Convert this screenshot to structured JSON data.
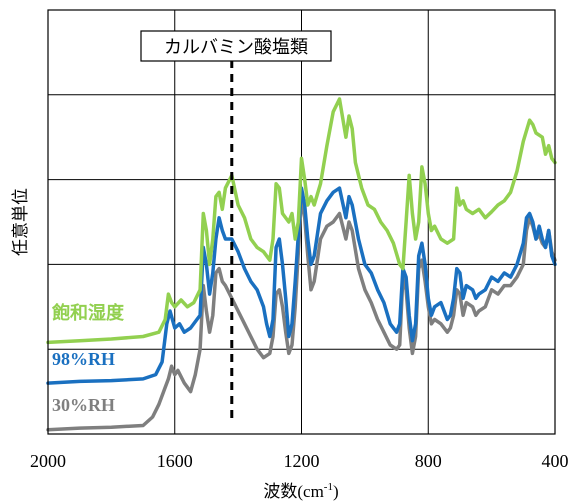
{
  "chart_data": {
    "type": "line",
    "xlabel": "波数(cm",
    "xlabel_sup": "-1",
    "xlabel_close": ")",
    "ylabel": "任意単位",
    "xlim": [
      2000,
      400
    ],
    "x_reversed": true,
    "ylim": [
      0,
      5
    ],
    "grid": true,
    "x_ticks": [
      "2000",
      "1600",
      "1200",
      "800",
      "400"
    ],
    "x_tick_values": [
      2000,
      1600,
      1200,
      800,
      400
    ],
    "annotation": {
      "label": "カルバミン酸塩類",
      "x": 1420,
      "style": "dashed vertical line"
    },
    "series": [
      {
        "name": "飽和湿度",
        "color": "#92d050",
        "points": [
          [
            2000,
            1.08
          ],
          [
            1900,
            1.1
          ],
          [
            1800,
            1.12
          ],
          [
            1700,
            1.15
          ],
          [
            1650,
            1.2
          ],
          [
            1630,
            1.35
          ],
          [
            1620,
            1.65
          ],
          [
            1610,
            1.55
          ],
          [
            1600,
            1.5
          ],
          [
            1580,
            1.58
          ],
          [
            1560,
            1.5
          ],
          [
            1540,
            1.55
          ],
          [
            1520,
            1.7
          ],
          [
            1510,
            2.6
          ],
          [
            1500,
            2.4
          ],
          [
            1490,
            2.0
          ],
          [
            1480,
            2.3
          ],
          [
            1470,
            2.8
          ],
          [
            1460,
            2.85
          ],
          [
            1450,
            2.65
          ],
          [
            1440,
            2.9
          ],
          [
            1420,
            3.05
          ],
          [
            1400,
            2.7
          ],
          [
            1380,
            2.55
          ],
          [
            1360,
            2.3
          ],
          [
            1340,
            2.2
          ],
          [
            1320,
            2.15
          ],
          [
            1300,
            2.05
          ],
          [
            1290,
            2.3
          ],
          [
            1280,
            2.95
          ],
          [
            1270,
            2.9
          ],
          [
            1260,
            2.6
          ],
          [
            1240,
            2.5
          ],
          [
            1230,
            2.6
          ],
          [
            1220,
            2.3
          ],
          [
            1210,
            2.5
          ],
          [
            1200,
            3.25
          ],
          [
            1190,
            3.0
          ],
          [
            1180,
            2.7
          ],
          [
            1170,
            2.8
          ],
          [
            1160,
            2.7
          ],
          [
            1140,
            2.95
          ],
          [
            1120,
            3.4
          ],
          [
            1100,
            3.8
          ],
          [
            1080,
            3.95
          ],
          [
            1060,
            3.5
          ],
          [
            1050,
            3.75
          ],
          [
            1040,
            3.6
          ],
          [
            1030,
            3.2
          ],
          [
            1010,
            2.9
          ],
          [
            990,
            2.7
          ],
          [
            970,
            2.65
          ],
          [
            950,
            2.5
          ],
          [
            930,
            2.4
          ],
          [
            910,
            2.25
          ],
          [
            890,
            2.0
          ],
          [
            880,
            1.95
          ],
          [
            870,
            2.5
          ],
          [
            860,
            3.05
          ],
          [
            850,
            2.6
          ],
          [
            840,
            2.3
          ],
          [
            830,
            2.5
          ],
          [
            820,
            3.15
          ],
          [
            810,
            2.95
          ],
          [
            800,
            2.6
          ],
          [
            790,
            2.4
          ],
          [
            780,
            2.45
          ],
          [
            760,
            2.3
          ],
          [
            740,
            2.25
          ],
          [
            720,
            2.3
          ],
          [
            710,
            2.9
          ],
          [
            700,
            2.7
          ],
          [
            690,
            2.75
          ],
          [
            680,
            2.65
          ],
          [
            660,
            2.6
          ],
          [
            640,
            2.65
          ],
          [
            620,
            2.55
          ],
          [
            600,
            2.62
          ],
          [
            580,
            2.7
          ],
          [
            560,
            2.75
          ],
          [
            540,
            2.85
          ],
          [
            520,
            3.1
          ],
          [
            500,
            3.45
          ],
          [
            480,
            3.7
          ],
          [
            470,
            3.65
          ],
          [
            460,
            3.55
          ],
          [
            440,
            3.5
          ],
          [
            430,
            3.3
          ],
          [
            420,
            3.4
          ],
          [
            410,
            3.25
          ],
          [
            400,
            3.2
          ]
        ]
      },
      {
        "name": "98%RH",
        "color": "#1a70c0",
        "points": [
          [
            2000,
            0.6
          ],
          [
            1900,
            0.62
          ],
          [
            1800,
            0.63
          ],
          [
            1700,
            0.65
          ],
          [
            1660,
            0.7
          ],
          [
            1640,
            0.85
          ],
          [
            1625,
            1.3
          ],
          [
            1615,
            1.45
          ],
          [
            1600,
            1.25
          ],
          [
            1585,
            1.3
          ],
          [
            1570,
            1.2
          ],
          [
            1550,
            1.25
          ],
          [
            1530,
            1.35
          ],
          [
            1520,
            1.4
          ],
          [
            1510,
            2.2
          ],
          [
            1500,
            2.0
          ],
          [
            1490,
            1.65
          ],
          [
            1480,
            1.9
          ],
          [
            1470,
            2.3
          ],
          [
            1460,
            2.55
          ],
          [
            1450,
            2.4
          ],
          [
            1440,
            2.3
          ],
          [
            1420,
            2.3
          ],
          [
            1400,
            2.15
          ],
          [
            1380,
            1.95
          ],
          [
            1360,
            1.8
          ],
          [
            1340,
            1.7
          ],
          [
            1320,
            1.5
          ],
          [
            1310,
            1.3
          ],
          [
            1300,
            1.15
          ],
          [
            1290,
            1.35
          ],
          [
            1280,
            2.2
          ],
          [
            1270,
            2.3
          ],
          [
            1260,
            2.0
          ],
          [
            1250,
            1.6
          ],
          [
            1240,
            1.15
          ],
          [
            1230,
            1.3
          ],
          [
            1220,
            1.8
          ],
          [
            1200,
            2.9
          ],
          [
            1190,
            2.7
          ],
          [
            1180,
            2.3
          ],
          [
            1170,
            2.0
          ],
          [
            1160,
            2.1
          ],
          [
            1140,
            2.6
          ],
          [
            1120,
            2.75
          ],
          [
            1100,
            2.85
          ],
          [
            1080,
            2.9
          ],
          [
            1060,
            2.55
          ],
          [
            1050,
            2.8
          ],
          [
            1040,
            2.7
          ],
          [
            1020,
            2.3
          ],
          [
            1000,
            2.0
          ],
          [
            980,
            1.9
          ],
          [
            960,
            1.7
          ],
          [
            940,
            1.55
          ],
          [
            920,
            1.3
          ],
          [
            900,
            1.2
          ],
          [
            890,
            1.3
          ],
          [
            880,
            1.95
          ],
          [
            870,
            1.85
          ],
          [
            860,
            1.4
          ],
          [
            850,
            1.1
          ],
          [
            840,
            1.3
          ],
          [
            830,
            2.1
          ],
          [
            820,
            2.25
          ],
          [
            810,
            2.0
          ],
          [
            800,
            1.6
          ],
          [
            790,
            1.4
          ],
          [
            780,
            1.5
          ],
          [
            760,
            1.55
          ],
          [
            740,
            1.35
          ],
          [
            730,
            1.4
          ],
          [
            720,
            1.6
          ],
          [
            710,
            1.95
          ],
          [
            700,
            1.9
          ],
          [
            690,
            1.6
          ],
          [
            680,
            1.75
          ],
          [
            660,
            1.7
          ],
          [
            650,
            1.6
          ],
          [
            640,
            1.65
          ],
          [
            620,
            1.7
          ],
          [
            600,
            1.85
          ],
          [
            580,
            1.8
          ],
          [
            560,
            1.9
          ],
          [
            540,
            1.85
          ],
          [
            520,
            2.0
          ],
          [
            500,
            2.25
          ],
          [
            490,
            2.55
          ],
          [
            480,
            2.6
          ],
          [
            470,
            2.5
          ],
          [
            460,
            2.3
          ],
          [
            450,
            2.45
          ],
          [
            440,
            2.3
          ],
          [
            430,
            2.2
          ],
          [
            420,
            2.4
          ],
          [
            410,
            2.1
          ],
          [
            400,
            2.0
          ]
        ]
      },
      {
        "name": "30%RH",
        "color": "#7f7f7f",
        "points": [
          [
            2000,
            0.05
          ],
          [
            1900,
            0.07
          ],
          [
            1800,
            0.08
          ],
          [
            1700,
            0.1
          ],
          [
            1670,
            0.2
          ],
          [
            1650,
            0.35
          ],
          [
            1630,
            0.55
          ],
          [
            1620,
            0.65
          ],
          [
            1610,
            0.8
          ],
          [
            1600,
            0.7
          ],
          [
            1590,
            0.75
          ],
          [
            1570,
            0.6
          ],
          [
            1550,
            0.5
          ],
          [
            1535,
            0.7
          ],
          [
            1520,
            1.0
          ],
          [
            1510,
            1.75
          ],
          [
            1500,
            1.45
          ],
          [
            1490,
            1.2
          ],
          [
            1480,
            1.4
          ],
          [
            1470,
            1.9
          ],
          [
            1460,
            1.95
          ],
          [
            1450,
            1.8
          ],
          [
            1440,
            1.75
          ],
          [
            1420,
            1.6
          ],
          [
            1400,
            1.45
          ],
          [
            1380,
            1.3
          ],
          [
            1360,
            1.15
          ],
          [
            1340,
            1.0
          ],
          [
            1320,
            0.9
          ],
          [
            1300,
            0.95
          ],
          [
            1290,
            1.15
          ],
          [
            1280,
            1.65
          ],
          [
            1270,
            1.7
          ],
          [
            1260,
            1.5
          ],
          [
            1250,
            1.2
          ],
          [
            1240,
            0.95
          ],
          [
            1230,
            1.05
          ],
          [
            1220,
            1.5
          ],
          [
            1200,
            2.8
          ],
          [
            1190,
            2.55
          ],
          [
            1180,
            2.1
          ],
          [
            1170,
            1.7
          ],
          [
            1160,
            1.8
          ],
          [
            1140,
            2.3
          ],
          [
            1120,
            2.45
          ],
          [
            1100,
            2.5
          ],
          [
            1080,
            2.6
          ],
          [
            1060,
            2.3
          ],
          [
            1050,
            2.5
          ],
          [
            1040,
            2.4
          ],
          [
            1020,
            1.95
          ],
          [
            1000,
            1.7
          ],
          [
            980,
            1.55
          ],
          [
            960,
            1.35
          ],
          [
            940,
            1.2
          ],
          [
            920,
            1.05
          ],
          [
            900,
            1.0
          ],
          [
            890,
            1.05
          ],
          [
            880,
            1.85
          ],
          [
            870,
            1.7
          ],
          [
            860,
            1.25
          ],
          [
            850,
            0.95
          ],
          [
            840,
            1.15
          ],
          [
            830,
            1.95
          ],
          [
            820,
            2.05
          ],
          [
            810,
            1.8
          ],
          [
            800,
            1.5
          ],
          [
            790,
            1.3
          ],
          [
            780,
            1.35
          ],
          [
            760,
            1.3
          ],
          [
            740,
            1.2
          ],
          [
            730,
            1.25
          ],
          [
            720,
            1.4
          ],
          [
            710,
            1.7
          ],
          [
            700,
            1.65
          ],
          [
            690,
            1.4
          ],
          [
            680,
            1.55
          ],
          [
            660,
            1.5
          ],
          [
            650,
            1.4
          ],
          [
            640,
            1.45
          ],
          [
            620,
            1.5
          ],
          [
            600,
            1.7
          ],
          [
            580,
            1.65
          ],
          [
            560,
            1.75
          ],
          [
            540,
            1.75
          ],
          [
            520,
            1.85
          ],
          [
            500,
            2.0
          ],
          [
            490,
            2.4
          ],
          [
            480,
            2.55
          ],
          [
            470,
            2.45
          ],
          [
            460,
            2.3
          ],
          [
            450,
            2.35
          ],
          [
            440,
            2.25
          ],
          [
            430,
            2.2
          ],
          [
            420,
            2.4
          ],
          [
            410,
            2.15
          ],
          [
            400,
            2.05
          ]
        ]
      }
    ]
  }
}
